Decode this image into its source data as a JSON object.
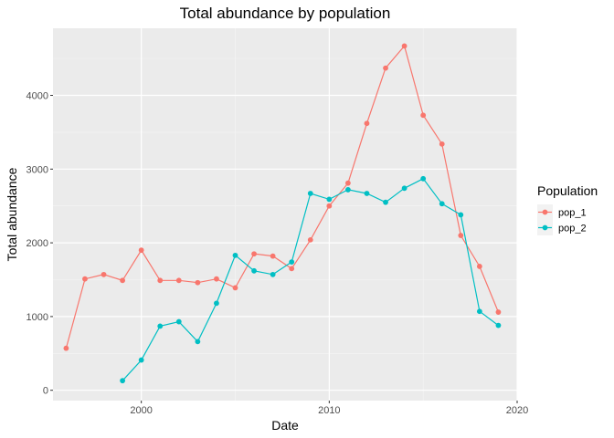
{
  "chart_data": {
    "type": "line",
    "title": "Total abundance by population",
    "xlabel": "Date",
    "ylabel": "Total abundance",
    "xlim": [
      1995.3,
      2020.0
    ],
    "ylim": [
      -140,
      4910
    ],
    "x_ticks": [
      2000,
      2010,
      2020
    ],
    "x_tick_labels": [
      "2000",
      "2010",
      "2020"
    ],
    "y_ticks": [
      0,
      1000,
      2000,
      3000,
      4000
    ],
    "y_tick_labels": [
      "0",
      "1000",
      "2000",
      "3000",
      "4000"
    ],
    "grid": true,
    "legend": {
      "title": "Population",
      "position": "right"
    },
    "series": [
      {
        "name": "pop_1",
        "color": "#F8766D",
        "x": [
          1996,
          1997,
          1998,
          1999,
          2000,
          2001,
          2002,
          2003,
          2004,
          2005,
          2006,
          2007,
          2008,
          2009,
          2010,
          2011,
          2012,
          2013,
          2014,
          2015,
          2016,
          2017,
          2018,
          2019
        ],
        "y": [
          570,
          1510,
          1570,
          1490,
          1900,
          1490,
          1490,
          1460,
          1510,
          1390,
          1850,
          1820,
          1650,
          2040,
          2500,
          2810,
          3620,
          4370,
          4670,
          3730,
          3340,
          2100,
          1680,
          1060
        ]
      },
      {
        "name": "pop_2",
        "color": "#00BFC4",
        "x": [
          1999,
          2000,
          2001,
          2002,
          2003,
          2004,
          2005,
          2006,
          2007,
          2008,
          2009,
          2010,
          2011,
          2012,
          2013,
          2014,
          2015,
          2016,
          2017,
          2018,
          2019
        ],
        "y": [
          130,
          410,
          870,
          930,
          660,
          1180,
          1830,
          1620,
          1570,
          1740,
          2670,
          2590,
          2720,
          2670,
          2550,
          2740,
          2870,
          2530,
          2380,
          1070,
          880
        ]
      }
    ]
  }
}
